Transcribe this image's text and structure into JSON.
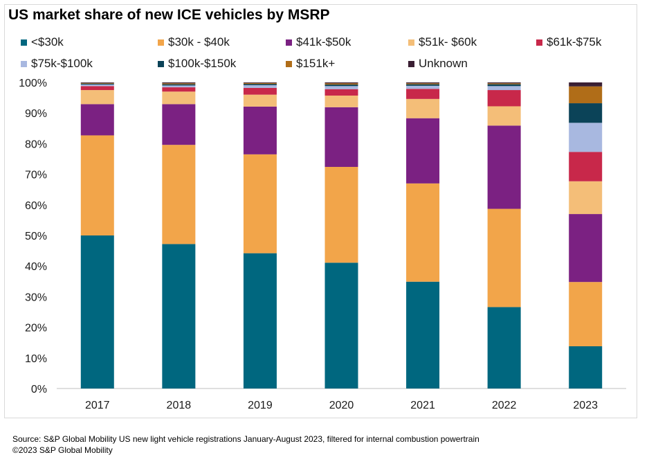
{
  "chart_data": {
    "type": "stacked-bar",
    "title": "US market share of new ICE vehicles by MSRP",
    "categories": [
      "2017",
      "2018",
      "2019",
      "2020",
      "2021",
      "2022",
      "2023"
    ],
    "ylim": [
      0,
      100
    ],
    "yticks": [
      "0%",
      "10%",
      "20%",
      "30%",
      "40%",
      "50%",
      "60%",
      "70%",
      "80%",
      "90%",
      "100%"
    ],
    "legend_position": "top",
    "series": [
      {
        "name": "<$30k",
        "color": "#00677f",
        "values": [
          50.0,
          47.2,
          44.2,
          41.1,
          34.9,
          26.6,
          13.8
        ]
      },
      {
        "name": "$30k - $40k",
        "color": "#f2a54a",
        "values": [
          32.7,
          32.4,
          32.3,
          31.3,
          32.1,
          32.1,
          21.0
        ]
      },
      {
        "name": "$41k-$50k",
        "color": "#7b2182",
        "values": [
          10.2,
          13.3,
          15.6,
          19.5,
          21.3,
          27.2,
          22.2
        ]
      },
      {
        "name": "$51k- $60k",
        "color": "#f4be78",
        "values": [
          4.6,
          4.1,
          3.9,
          3.8,
          6.3,
          6.3,
          10.7
        ]
      },
      {
        "name": "$61k-$75k",
        "color": "#c8284a",
        "values": [
          1.3,
          1.4,
          2.2,
          2.1,
          3.3,
          5.3,
          9.6
        ]
      },
      {
        "name": "$75k-$100k",
        "color": "#a8b8e0",
        "values": [
          0.5,
          0.6,
          0.9,
          1.0,
          1.0,
          1.3,
          9.5
        ]
      },
      {
        "name": "$100k-$150k",
        "color": "#0b4358",
        "values": [
          0.3,
          0.4,
          0.4,
          0.5,
          0.5,
          0.6,
          6.4
        ]
      },
      {
        "name": "$151k+",
        "color": "#b06d18",
        "values": [
          0.2,
          0.3,
          0.3,
          0.4,
          0.3,
          0.3,
          5.5
        ]
      },
      {
        "name": "Unknown",
        "color": "#3a1f33",
        "values": [
          0.2,
          0.3,
          0.2,
          0.3,
          0.3,
          0.3,
          1.3
        ]
      }
    ]
  },
  "source": {
    "line1": "Source: S&P Global Mobility US new light vehicle registrations January-August 2023, filtered for internal combustion powertrain",
    "line2": "©2023 S&P Global Mobility"
  }
}
